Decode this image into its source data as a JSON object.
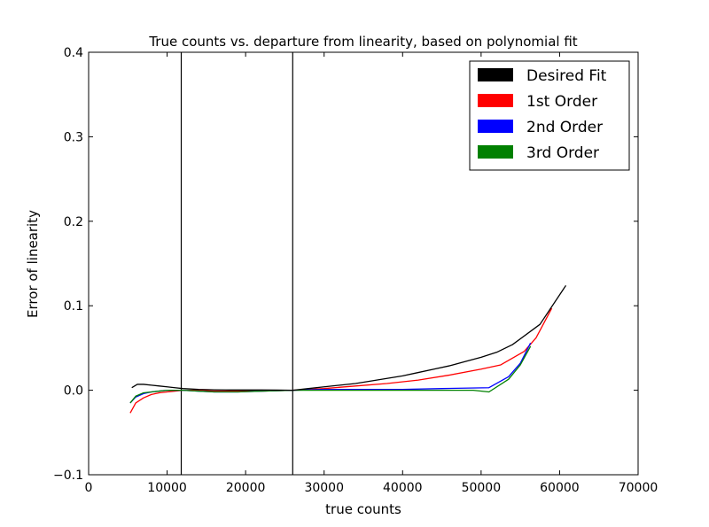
{
  "chart_data": {
    "type": "line",
    "title": "True counts vs. departure from linearity, based on polynomial fit",
    "xlabel": "true counts",
    "ylabel": "Error of linearity",
    "xlim": [
      0,
      70000
    ],
    "ylim": [
      -0.1,
      0.4
    ],
    "xticks": [
      0,
      10000,
      20000,
      30000,
      40000,
      50000,
      60000,
      70000
    ],
    "yticks": [
      -0.1,
      0.0,
      0.1,
      0.2,
      0.3,
      0.4
    ],
    "xtick_labels": [
      "0",
      "10000",
      "20000",
      "30000",
      "40000",
      "50000",
      "60000",
      "70000"
    ],
    "ytick_labels": [
      "−0.1",
      "0.0",
      "0.1",
      "0.2",
      "0.3",
      "0.4"
    ],
    "grid": false,
    "legend_position": "top-right",
    "vertical_lines": [
      {
        "x": 11800,
        "color": "#000000"
      },
      {
        "x": 26000,
        "color": "#000000"
      }
    ],
    "series": [
      {
        "name": "Desired Fit",
        "color": "#000000",
        "x": [
          5500,
          6200,
          7000,
          8000,
          9000,
          10000,
          11000,
          12000,
          14000,
          16000,
          18000,
          20000,
          22000,
          24000,
          26000,
          28000,
          30000,
          32000,
          34000,
          36000,
          38000,
          40000,
          42000,
          44000,
          46000,
          48000,
          50000,
          52000,
          54000,
          57500,
          60800
        ],
        "y": [
          0.003,
          0.007,
          0.007,
          0.006,
          0.005,
          0.004,
          0.003,
          0.002,
          0.001,
          0.0005,
          0.0003,
          0.0003,
          0.0003,
          0.0002,
          0.0,
          0.002,
          0.004,
          0.006,
          0.008,
          0.011,
          0.014,
          0.017,
          0.021,
          0.025,
          0.029,
          0.034,
          0.039,
          0.045,
          0.054,
          0.078,
          0.124
        ]
      },
      {
        "name": "1st Order",
        "color": "#ff0000",
        "x": [
          5300,
          6000,
          7000,
          8000,
          9000,
          10000,
          11000,
          12000,
          14000,
          16000,
          19000,
          22000,
          26000,
          30000,
          34000,
          38000,
          42000,
          46000,
          50000,
          52500,
          54000,
          55500,
          57000,
          59000
        ],
        "y": [
          -0.027,
          -0.015,
          -0.009,
          -0.005,
          -0.003,
          -0.002,
          -0.001,
          0.0,
          0.0,
          -0.001,
          -0.001,
          -0.001,
          0.0,
          0.002,
          0.005,
          0.008,
          0.012,
          0.018,
          0.025,
          0.03,
          0.038,
          0.046,
          0.062,
          0.097
        ]
      },
      {
        "name": "2nd Order",
        "color": "#0000ff",
        "x": [
          5300,
          6000,
          7000,
          8000,
          9000,
          10000,
          11000,
          12000,
          14000,
          16000,
          19000,
          22000,
          26000,
          30000,
          35000,
          40000,
          45000,
          51000,
          53500,
          55000,
          56300
        ],
        "y": [
          -0.015,
          -0.008,
          -0.004,
          -0.002,
          -0.001,
          0.0,
          0.0,
          0.0,
          -0.001,
          -0.002,
          -0.002,
          -0.001,
          0.0,
          0.001,
          0.001,
          0.001,
          0.002,
          0.003,
          0.016,
          0.032,
          0.056
        ]
      },
      {
        "name": "3rd Order",
        "color": "#008000",
        "x": [
          5300,
          6000,
          7000,
          8000,
          9000,
          10000,
          11000,
          12000,
          14000,
          16000,
          19000,
          22000,
          26000,
          30000,
          35000,
          40000,
          45000,
          49000,
          51000,
          53500,
          55000,
          56300
        ],
        "y": [
          -0.015,
          -0.007,
          -0.003,
          -0.002,
          -0.001,
          0.0,
          0.0,
          0.0,
          -0.001,
          -0.002,
          -0.002,
          -0.001,
          0.0,
          0.0,
          0.0,
          0.0,
          0.0,
          0.0,
          -0.002,
          0.013,
          0.03,
          0.052
        ]
      }
    ]
  }
}
